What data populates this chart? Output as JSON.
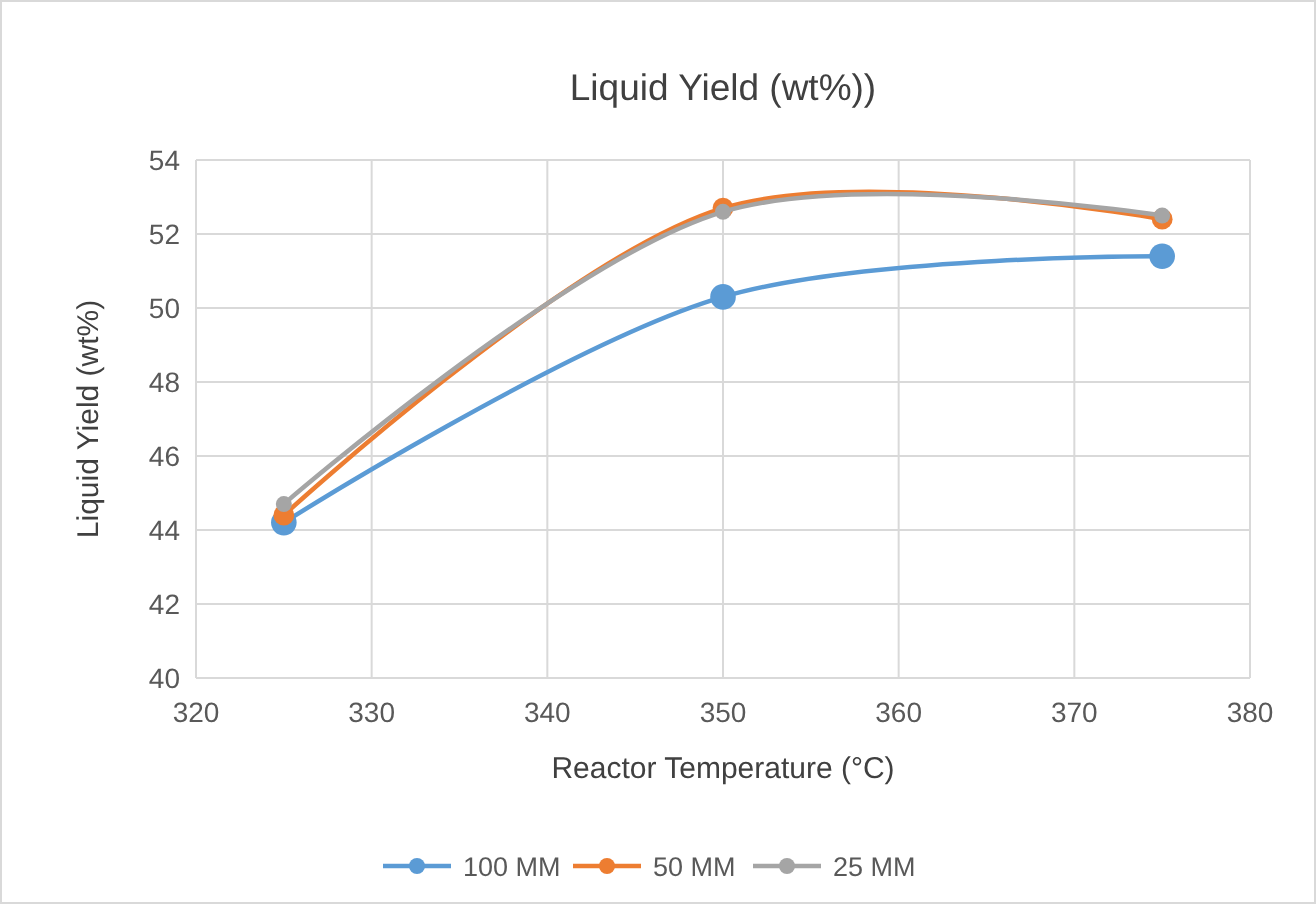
{
  "chart_data": {
    "type": "line",
    "title": "Liquid Yield (wt%))",
    "xlabel": "Reactor Temperature (°C)",
    "ylabel": "Liquid Yield (wt%)",
    "x": [
      325,
      350,
      375
    ],
    "series": [
      {
        "name": "100 MM",
        "color": "#5b9bd5",
        "values": [
          44.2,
          50.3,
          51.4
        ]
      },
      {
        "name": "50 MM",
        "color": "#ed7d31",
        "values": [
          44.4,
          52.7,
          52.4
        ]
      },
      {
        "name": "25 MM",
        "color": "#a5a5a5",
        "values": [
          44.7,
          52.6,
          52.5
        ]
      }
    ],
    "xlim": [
      320,
      380
    ],
    "xticks": [
      320,
      330,
      340,
      350,
      360,
      370,
      380
    ],
    "ylim": [
      40,
      54
    ],
    "yticks": [
      40,
      42,
      44,
      46,
      48,
      50,
      52,
      54
    ],
    "grid": true,
    "legend": "bottom",
    "marker": "circle",
    "line_style": "solid"
  }
}
